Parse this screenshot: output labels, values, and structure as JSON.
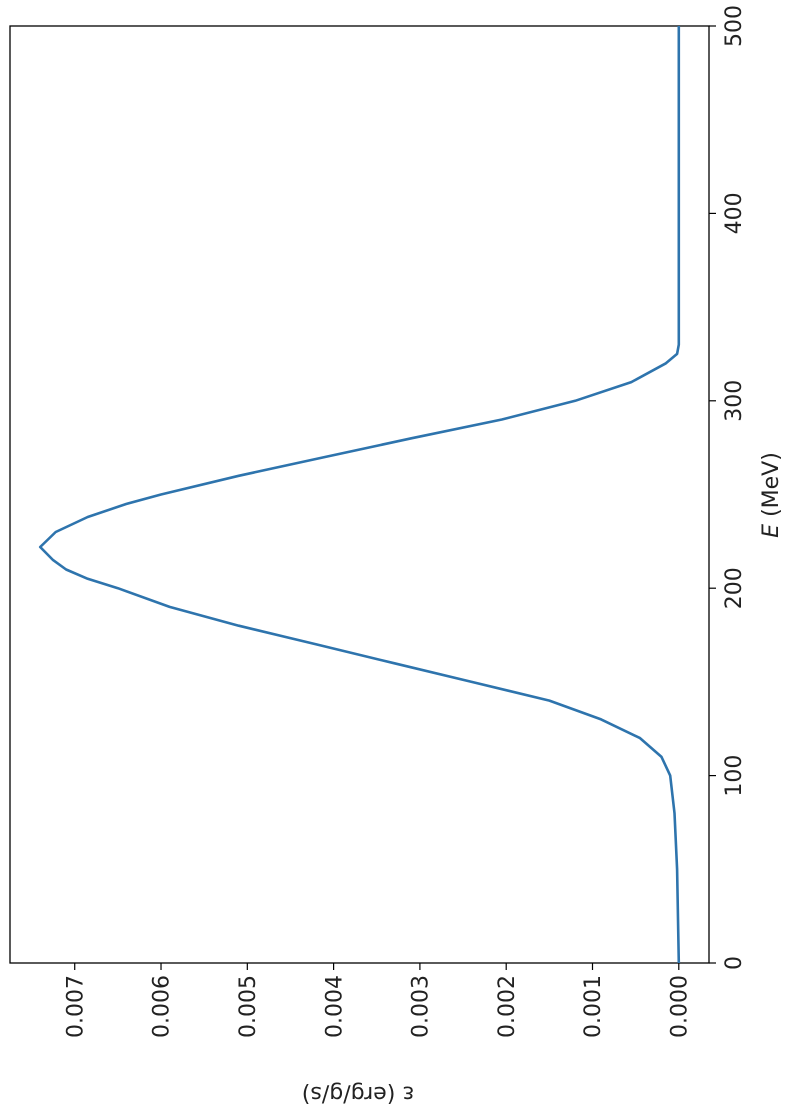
{
  "chart_data": {
    "type": "line",
    "title": "",
    "xlabel_var": "E",
    "xlabel_unit": " (MeV)",
    "ylabel": "ε (erg/g/s)",
    "xlim": [
      0,
      500
    ],
    "ylim": [
      -0.00035,
      0.00775
    ],
    "x_ticks": [
      0,
      100,
      200,
      300,
      400,
      500
    ],
    "x_tick_labels": [
      "0",
      "100",
      "200",
      "300",
      "400",
      "500"
    ],
    "y_ticks": [
      0.0,
      0.001,
      0.002,
      0.003,
      0.004,
      0.005,
      0.006,
      0.007
    ],
    "y_tick_labels": [
      "0.000",
      "0.001",
      "0.002",
      "0.003",
      "0.004",
      "0.005",
      "0.006",
      "0.007"
    ],
    "grid": false,
    "orientation": "rotated 90° clockwise",
    "line_color": "#2e74ad",
    "series": [
      {
        "x": [
          0,
          50,
          80,
          100,
          110,
          120,
          130,
          140,
          150,
          160,
          170,
          180,
          190,
          200,
          205,
          210,
          215,
          222,
          230,
          238,
          245,
          250,
          260,
          270,
          280,
          290,
          300,
          310,
          320,
          325,
          330,
          400,
          500
        ],
        "y": [
          0.0,
          2e-05,
          5e-05,
          0.0001,
          0.0002,
          0.00045,
          0.0009,
          0.0015,
          0.0024,
          0.0033,
          0.0042,
          0.0051,
          0.0059,
          0.0065,
          0.00685,
          0.0071,
          0.00725,
          0.0074,
          0.00722,
          0.00685,
          0.0064,
          0.006,
          0.0051,
          0.0041,
          0.0031,
          0.00205,
          0.0012,
          0.00055,
          0.00015,
          2e-05,
          0.0,
          0.0,
          0.0
        ]
      }
    ]
  }
}
